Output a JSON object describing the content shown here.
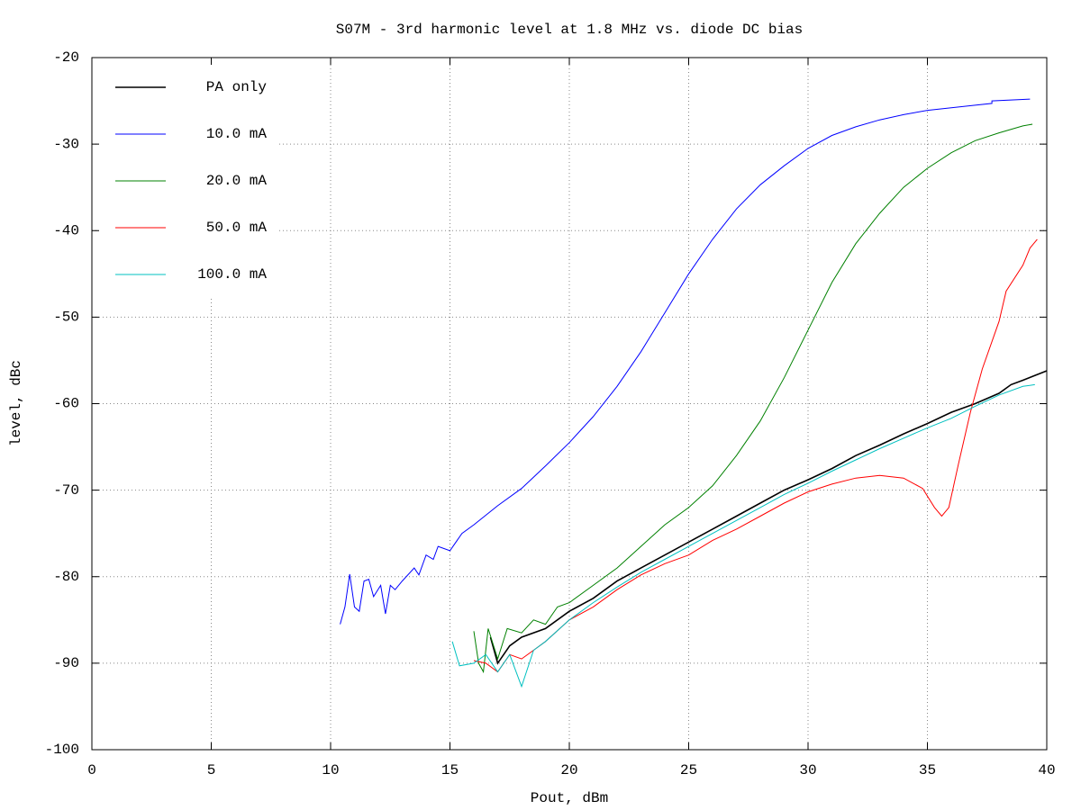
{
  "chart_data": {
    "type": "line",
    "title": "S07M - 3rd harmonic level at 1.8 MHz vs. diode DC bias",
    "xlabel": "Pout, dBm",
    "ylabel": "level, dBc",
    "xlim": [
      0,
      40
    ],
    "ylim": [
      -100,
      -20
    ],
    "xticks": [
      0,
      5,
      10,
      15,
      20,
      25,
      30,
      35,
      40
    ],
    "yticks": [
      -100,
      -90,
      -80,
      -70,
      -60,
      -50,
      -40,
      -30,
      -20
    ],
    "grid": true,
    "legend": "upper left",
    "series": [
      {
        "name": "PA only",
        "color": "#000000",
        "x": [
          16.7,
          17,
          17.5,
          18,
          19,
          20,
          21,
          22,
          23,
          24,
          25,
          26,
          27,
          28,
          29,
          30,
          31,
          32,
          33,
          34,
          35,
          36,
          37,
          38,
          38.5,
          39,
          40
        ],
        "values": [
          -87,
          -90,
          -88,
          -87,
          -86,
          -84,
          -82.5,
          -80.5,
          -79,
          -77.5,
          -76,
          -74.5,
          -73,
          -71.5,
          -70,
          -68.8,
          -67.5,
          -66,
          -64.8,
          -63.5,
          -62.3,
          -61,
          -60,
          -58.8,
          -57.8,
          -57.3,
          -56.2
        ]
      },
      {
        "name": "10.0 mA",
        "color": "#0000ff",
        "x": [
          10.4,
          10.6,
          10.8,
          11,
          11.2,
          11.4,
          11.6,
          11.8,
          12.1,
          12.3,
          12.5,
          12.7,
          13,
          13.5,
          13.7,
          14,
          14.3,
          14.5,
          15,
          15.5,
          16,
          17,
          18,
          19,
          20,
          21,
          22,
          23,
          24,
          25,
          26,
          27,
          28,
          29,
          30,
          31,
          32,
          33,
          34,
          35,
          36,
          37,
          37.7,
          37.7,
          39.3
        ],
        "values": [
          -85.5,
          -83.5,
          -79.7,
          -83.5,
          -84,
          -80.5,
          -80.3,
          -82.3,
          -81,
          -84.3,
          -81,
          -81.5,
          -80.5,
          -79,
          -79.8,
          -77.5,
          -78,
          -76.5,
          -77,
          -75,
          -74,
          -71.8,
          -69.8,
          -67.2,
          -64.5,
          -61.5,
          -58,
          -54,
          -49.5,
          -45,
          -41,
          -37.5,
          -34.7,
          -32.5,
          -30.5,
          -29,
          -28,
          -27.2,
          -26.6,
          -26.1,
          -25.8,
          -25.5,
          -25.3,
          -25,
          -24.8
        ]
      },
      {
        "name": "20.0 mA",
        "color": "#008000",
        "x": [
          16,
          16.2,
          16.4,
          16.6,
          17,
          17.4,
          18,
          18.5,
          19,
          19.5,
          20,
          21,
          22,
          23,
          24,
          25,
          26,
          27,
          28,
          29,
          30,
          31,
          32,
          33,
          34,
          35,
          36,
          37,
          38,
          39,
          39.4
        ],
        "values": [
          -86.3,
          -90,
          -91,
          -86,
          -89.5,
          -86,
          -86.5,
          -85,
          -85.5,
          -83.5,
          -83,
          -81,
          -79,
          -76.5,
          -74,
          -72,
          -69.5,
          -66,
          -62,
          -57,
          -51.5,
          -46,
          -41.5,
          -38,
          -35,
          -32.8,
          -31,
          -29.6,
          -28.7,
          -27.9,
          -27.7
        ]
      },
      {
        "name": "50.0 mA",
        "color": "#ff0000",
        "x": [
          16,
          16.5,
          17,
          17.5,
          18,
          18.5,
          19,
          20,
          21,
          22,
          23,
          24,
          25,
          26,
          27,
          28,
          29,
          30,
          31,
          32,
          33,
          34,
          34.8,
          35.3,
          35.6,
          35.9,
          36.3,
          36.8,
          37.3,
          38,
          38.3,
          39,
          39.3,
          39.6
        ],
        "values": [
          -89.7,
          -90,
          -91,
          -89,
          -89.5,
          -88.5,
          -87.5,
          -85,
          -83.5,
          -81.5,
          -79.8,
          -78.5,
          -77.5,
          -75.8,
          -74.5,
          -73,
          -71.5,
          -70.2,
          -69.3,
          -68.6,
          -68.3,
          -68.6,
          -69.8,
          -72,
          -73,
          -72,
          -67,
          -61,
          -56,
          -50.5,
          -47,
          -44,
          -42,
          -41
        ]
      },
      {
        "name": "100.0 mA",
        "color": "#00c0c0",
        "x": [
          15.1,
          15.4,
          16,
          16.5,
          17,
          17.5,
          18,
          18.5,
          19,
          20,
          21,
          22,
          23,
          24,
          25,
          26,
          27,
          28,
          29,
          30,
          31,
          32,
          33,
          34,
          35,
          36,
          37,
          38,
          39,
          39.5
        ],
        "values": [
          -87.5,
          -90.3,
          -90,
          -89,
          -91,
          -89,
          -92.7,
          -88.5,
          -87.5,
          -85,
          -83,
          -81.2,
          -79.5,
          -78,
          -76.5,
          -75,
          -73.5,
          -72,
          -70.5,
          -69.2,
          -67.8,
          -66.5,
          -65.2,
          -64,
          -62.8,
          -61.7,
          -60.3,
          -59,
          -58,
          -57.8
        ]
      }
    ]
  }
}
